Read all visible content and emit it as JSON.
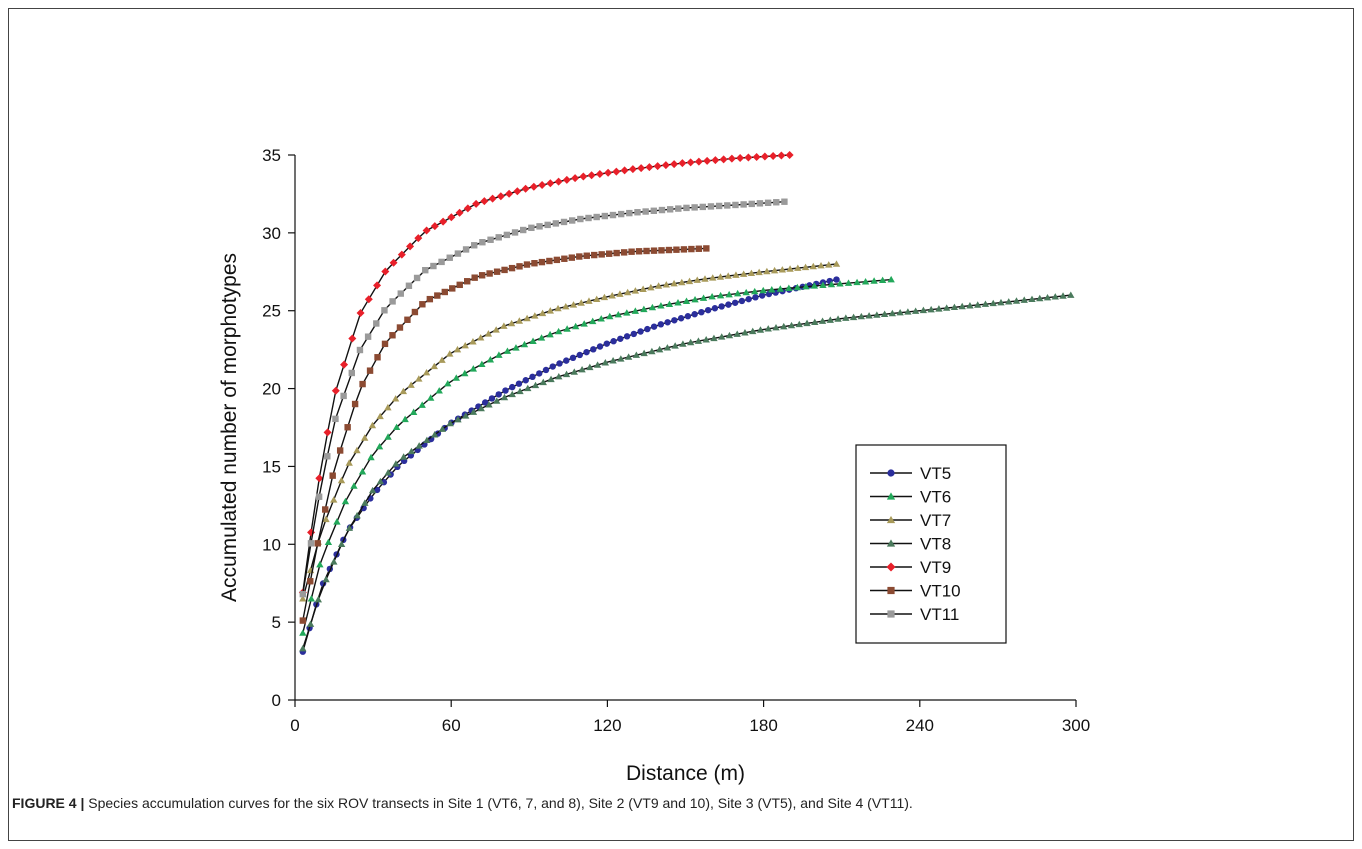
{
  "figure": {
    "caption_label": "FIGURE 4 |",
    "caption_text": " Species accumulation curves for the six ROV transects in Site 1 (VT6, 7, and 8), Site 2 (VT9 and 10), Site 3 (VT5), and Site 4 (VT11)."
  },
  "chart_data": {
    "type": "line",
    "title": "",
    "xlabel": "Distance (m)",
    "ylabel": "Accumulated number of morphotypes",
    "xlim": [
      0,
      300
    ],
    "ylim": [
      0,
      35
    ],
    "xticks": [
      0,
      60,
      120,
      180,
      240,
      300
    ],
    "yticks": [
      0,
      5,
      10,
      15,
      20,
      25,
      30,
      35
    ],
    "grid": false,
    "legend_position": "right",
    "line_color": "#111111",
    "series": [
      {
        "name": "VT5",
        "marker": "circle",
        "color": "#2b2e9c",
        "x_start": 3,
        "x_end": 208,
        "points": 80,
        "x": [
          3,
          10,
          20,
          30,
          40,
          60,
          80,
          100,
          120,
          140,
          160,
          180,
          208
        ],
        "y": [
          3.1,
          7.2,
          10.8,
          13.2,
          15.1,
          17.8,
          19.8,
          21.5,
          22.9,
          24.1,
          25.1,
          26.0,
          27.0
        ]
      },
      {
        "name": "VT6",
        "marker": "triangle",
        "color": "#22a85a",
        "x_start": 3,
        "x_end": 229,
        "points": 70,
        "x": [
          3,
          10,
          20,
          30,
          40,
          60,
          80,
          100,
          120,
          140,
          160,
          180,
          200,
          229
        ],
        "y": [
          4.3,
          9.0,
          13.0,
          15.8,
          17.7,
          20.5,
          22.3,
          23.6,
          24.6,
          25.3,
          25.9,
          26.3,
          26.6,
          27.0
        ]
      },
      {
        "name": "VT7",
        "marker": "triangle",
        "color": "#a89a5a",
        "x_start": 3,
        "x_end": 208,
        "points": 70,
        "x": [
          3,
          10,
          20,
          30,
          40,
          60,
          80,
          100,
          120,
          140,
          160,
          180,
          208
        ],
        "y": [
          6.5,
          10.8,
          15.0,
          17.7,
          19.6,
          22.3,
          24.0,
          25.1,
          25.9,
          26.6,
          27.1,
          27.5,
          28.0
        ]
      },
      {
        "name": "VT8",
        "marker": "triangle",
        "color": "#4a7a5c",
        "x_start": 3,
        "x_end": 298,
        "points": 100,
        "x": [
          3,
          10,
          20,
          30,
          40,
          60,
          80,
          100,
          120,
          150,
          180,
          210,
          240,
          270,
          298
        ],
        "y": [
          3.3,
          7.0,
          10.8,
          13.5,
          15.4,
          17.8,
          19.4,
          20.7,
          21.7,
          22.9,
          23.8,
          24.5,
          25.0,
          25.5,
          26.0
        ]
      },
      {
        "name": "VT9",
        "marker": "diamond",
        "color": "#e8202a",
        "x_start": 3,
        "x_end": 190,
        "points": 60,
        "x": [
          3,
          8,
          15,
          25,
          35,
          50,
          70,
          90,
          110,
          130,
          150,
          170,
          190
        ],
        "y": [
          6.9,
          13.0,
          19.5,
          24.8,
          27.6,
          30.1,
          31.9,
          32.9,
          33.6,
          34.1,
          34.5,
          34.8,
          35.0
        ]
      },
      {
        "name": "VT10",
        "marker": "square",
        "color": "#8b4a32",
        "x_start": 3,
        "x_end": 158,
        "points": 55,
        "x": [
          3,
          8,
          15,
          25,
          35,
          50,
          70,
          90,
          110,
          130,
          158
        ],
        "y": [
          5.1,
          9.5,
          14.8,
          20.0,
          23.0,
          25.6,
          27.2,
          28.0,
          28.5,
          28.8,
          29.0
        ]
      },
      {
        "name": "VT11",
        "marker": "square",
        "color": "#9a9a9a",
        "x_start": 3,
        "x_end": 188,
        "points": 60,
        "x": [
          3,
          8,
          15,
          25,
          35,
          50,
          70,
          90,
          110,
          130,
          150,
          170,
          188
        ],
        "y": [
          6.8,
          12.0,
          17.8,
          22.5,
          25.2,
          27.6,
          29.3,
          30.3,
          30.9,
          31.3,
          31.6,
          31.8,
          32.0
        ]
      }
    ]
  }
}
